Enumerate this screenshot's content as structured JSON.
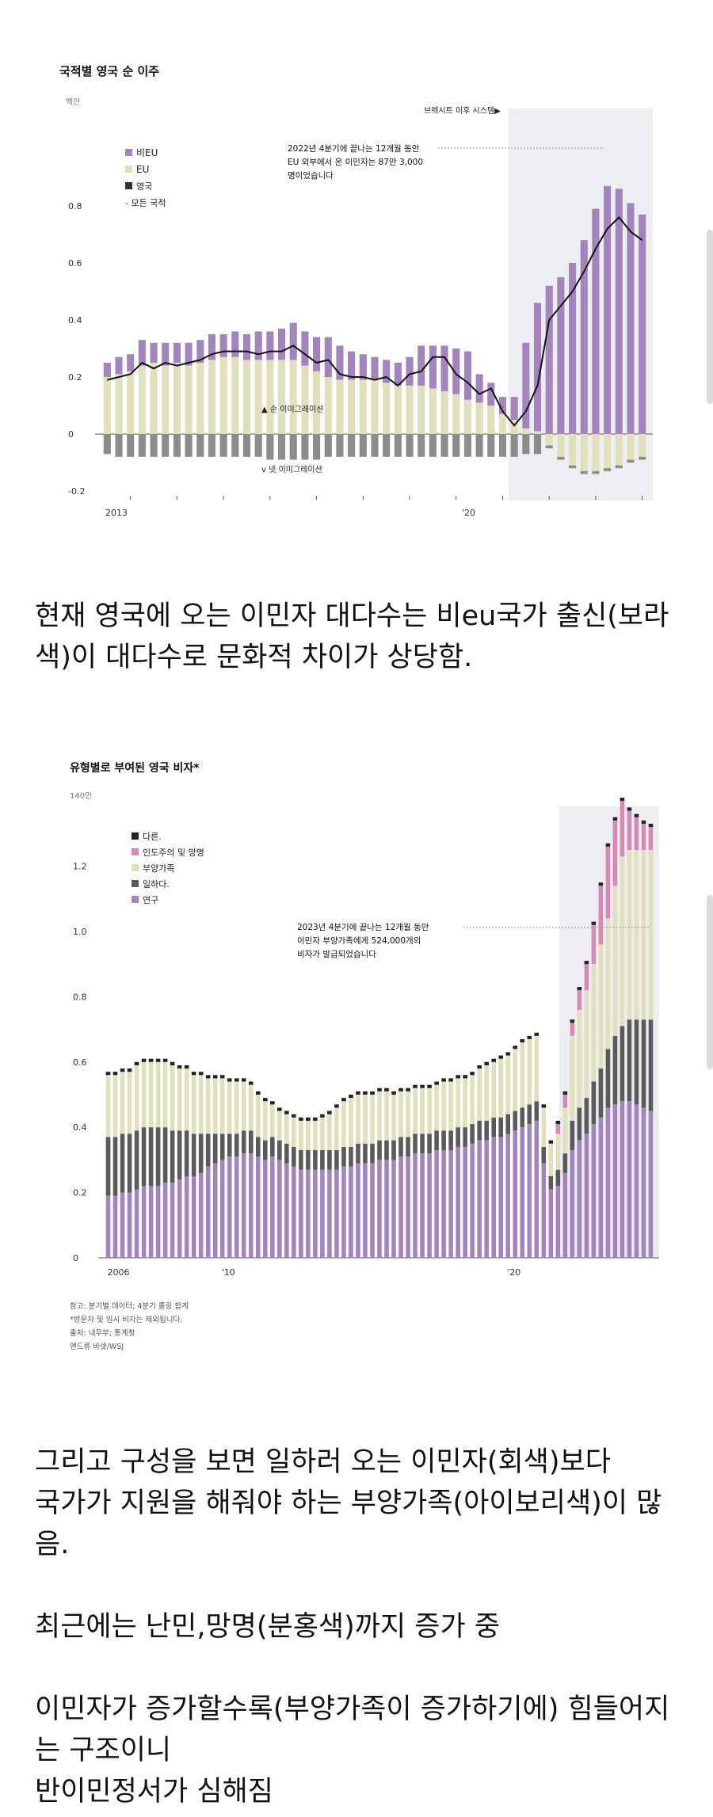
{
  "charts": {
    "c1": {
      "title": "국적별 영국 순 이주",
      "unit": "백만",
      "brexit_label": "브렉시트 이후 시스템▶",
      "legend": {
        "non_eu": "비EU",
        "eu": "EU",
        "uk": "영국",
        "all": "- 모든 국적"
      },
      "annotation": [
        "2022년 4분기에 끝나는 12개월 동안",
        "EU 외부에서 온 이민자는 87만 3,000",
        "명이었습니다"
      ],
      "net_immigration_label": "▲ 순 이미그레이션",
      "net_emigration_label": "v 넷 이미그레이션",
      "yticks": [
        "0.8",
        "0.6",
        "0.4",
        "0.2",
        "0",
        "-0.2"
      ],
      "xticks": [
        "2013",
        "'20"
      ]
    },
    "c2": {
      "title": "유형별로 부여된 영국 비자*",
      "unit": "140만",
      "legend": {
        "other": "다른.",
        "humanitarian": "인도주의 및 망명",
        "dependents": "부양가족",
        "work": "일하다.",
        "study": "연구"
      },
      "annotation": [
        "2023년 4분기에 끝나는 12개월 동안",
        "이민자 부양가족에게 524,000개의",
        "비자가 발급되었습니다"
      ],
      "yticks": [
        "1.2",
        "1.0",
        "0.8",
        "0.6",
        "0.4",
        "0.2",
        "0"
      ],
      "xticks": [
        "2006",
        "'10",
        "'20"
      ],
      "notes": [
        "참고: 분기별 데이터; 4분기 롤링 합계",
        "*방문자 및 임시 비자는 제외됩니다.",
        "출처: 내무부; 통계청",
        "앤드류 바넷/WSJ"
      ]
    }
  },
  "captions": {
    "c1": "현재 영국에 오는 이민자 대다수는 비eu국가 출신(보라\n색)이 대다수로 문화적 차이가 상당함.",
    "c2": "그리고 구성을 보면 일하러 오는 이민자(회색)보다\n국가가 지원을 해줘야 하는 부양가족(아이보리색)이 많음.\n\n최근에는 난민,망명(분홍색)까지 증가 중\n\n이민자가 증가할수록(부양가족이 증가하기에) 힘들어지\n는 구조이니\n반이민정서가 심해짐"
  },
  "colors": {
    "non_eu": "#a384bd",
    "eu": "#e2dfbd",
    "uk": "#8c8c8c",
    "line": "#111111",
    "study": "#a384bd",
    "work": "#5a5a5a",
    "dependents": "#e2dfbd",
    "humanitarian": "#d889b5",
    "other": "#222222",
    "brexit_shade": "#eceef1"
  },
  "chart_data": [
    {
      "type": "bar",
      "title": "국적별 영국 순 이주",
      "ylabel": "백만",
      "ylim": [
        -0.2,
        0.9
      ],
      "x_start": "2012 Q2",
      "x_step": "quarter",
      "xticks": [
        "2013",
        "'20"
      ],
      "stacked": true,
      "shaded_from_index": 35,
      "series": [
        {
          "name": "비EU",
          "values": [
            0.05,
            0.06,
            0.06,
            0.09,
            0.07,
            0.08,
            0.07,
            0.08,
            0.08,
            0.09,
            0.08,
            0.09,
            0.09,
            0.1,
            0.1,
            0.11,
            0.13,
            0.12,
            0.12,
            0.14,
            0.12,
            0.1,
            0.09,
            0.08,
            0.08,
            0.08,
            0.1,
            0.14,
            0.15,
            0.16,
            0.16,
            0.17,
            0.1,
            0.08,
            0.06,
            0.08,
            0.3,
            0.45,
            0.52,
            0.55,
            0.6,
            0.68,
            0.79,
            0.87,
            0.86,
            0.81,
            0.77
          ]
        },
        {
          "name": "EU",
          "values": [
            0.2,
            0.21,
            0.22,
            0.24,
            0.25,
            0.24,
            0.25,
            0.24,
            0.25,
            0.26,
            0.27,
            0.27,
            0.26,
            0.26,
            0.26,
            0.26,
            0.26,
            0.24,
            0.22,
            0.2,
            0.19,
            0.19,
            0.19,
            0.19,
            0.18,
            0.17,
            0.17,
            0.17,
            0.16,
            0.15,
            0.14,
            0.12,
            0.11,
            0.1,
            0.07,
            0.05,
            0.02,
            0.01,
            -0.04,
            -0.08,
            -0.11,
            -0.13,
            -0.13,
            -0.12,
            -0.11,
            -0.09,
            -0.08
          ]
        },
        {
          "name": "영국",
          "values": [
            -0.07,
            -0.08,
            -0.08,
            -0.08,
            -0.08,
            -0.08,
            -0.08,
            -0.08,
            -0.08,
            -0.08,
            -0.08,
            -0.08,
            -0.08,
            -0.08,
            -0.09,
            -0.09,
            -0.09,
            -0.09,
            -0.09,
            -0.08,
            -0.08,
            -0.08,
            -0.08,
            -0.08,
            -0.08,
            -0.08,
            -0.08,
            -0.08,
            -0.08,
            -0.08,
            -0.08,
            -0.08,
            -0.08,
            -0.08,
            -0.08,
            -0.08,
            -0.07,
            -0.07,
            -0.01,
            -0.01,
            -0.01,
            -0.01,
            -0.01,
            -0.01,
            -0.01,
            -0.01,
            -0.01
          ]
        },
        {
          "name": "모든 국적",
          "type": "line",
          "values": [
            0.19,
            0.2,
            0.21,
            0.25,
            0.23,
            0.25,
            0.24,
            0.25,
            0.26,
            0.28,
            0.29,
            0.29,
            0.29,
            0.28,
            0.29,
            0.29,
            0.31,
            0.28,
            0.25,
            0.26,
            0.21,
            0.2,
            0.2,
            0.19,
            0.2,
            0.17,
            0.21,
            0.22,
            0.27,
            0.27,
            0.21,
            0.18,
            0.14,
            0.16,
            0.08,
            0.03,
            0.08,
            0.17,
            0.4,
            0.45,
            0.5,
            0.57,
            0.65,
            0.72,
            0.76,
            0.71,
            0.68
          ]
        }
      ]
    },
    {
      "type": "bar",
      "title": "유형별로 부여된 영국 비자*",
      "ylabel": "140만",
      "ylim": [
        0,
        1.4
      ],
      "x_start": "2005 Q4",
      "x_step": "quarter",
      "xticks": [
        "2006",
        "'10",
        "'20"
      ],
      "stacked": true,
      "shaded_from_index": 64,
      "series": [
        {
          "name": "연구",
          "values": [
            0.19,
            0.19,
            0.2,
            0.2,
            0.21,
            0.22,
            0.22,
            0.22,
            0.23,
            0.23,
            0.24,
            0.25,
            0.25,
            0.26,
            0.28,
            0.29,
            0.3,
            0.31,
            0.31,
            0.32,
            0.32,
            0.31,
            0.3,
            0.31,
            0.3,
            0.29,
            0.28,
            0.27,
            0.27,
            0.27,
            0.27,
            0.27,
            0.27,
            0.28,
            0.28,
            0.29,
            0.29,
            0.29,
            0.3,
            0.3,
            0.3,
            0.31,
            0.31,
            0.32,
            0.32,
            0.32,
            0.33,
            0.33,
            0.33,
            0.34,
            0.34,
            0.35,
            0.36,
            0.36,
            0.37,
            0.37,
            0.38,
            0.39,
            0.4,
            0.41,
            0.42,
            0.29,
            0.21,
            0.22,
            0.26,
            0.33,
            0.36,
            0.38,
            0.41,
            0.43,
            0.46,
            0.47,
            0.48,
            0.48,
            0.47,
            0.46,
            0.45
          ]
        },
        {
          "name": "일하다.",
          "values": [
            0.18,
            0.18,
            0.18,
            0.18,
            0.18,
            0.18,
            0.18,
            0.18,
            0.17,
            0.16,
            0.15,
            0.14,
            0.13,
            0.12,
            0.1,
            0.09,
            0.08,
            0.07,
            0.07,
            0.07,
            0.07,
            0.06,
            0.06,
            0.06,
            0.06,
            0.06,
            0.06,
            0.06,
            0.06,
            0.06,
            0.06,
            0.06,
            0.06,
            0.06,
            0.06,
            0.06,
            0.06,
            0.06,
            0.06,
            0.06,
            0.06,
            0.06,
            0.06,
            0.06,
            0.06,
            0.06,
            0.06,
            0.06,
            0.06,
            0.06,
            0.06,
            0.06,
            0.06,
            0.06,
            0.06,
            0.06,
            0.06,
            0.06,
            0.06,
            0.06,
            0.06,
            0.05,
            0.04,
            0.05,
            0.06,
            0.09,
            0.1,
            0.11,
            0.13,
            0.15,
            0.18,
            0.21,
            0.23,
            0.25,
            0.26,
            0.27,
            0.28
          ]
        },
        {
          "name": "부양가족",
          "values": [
            0.19,
            0.19,
            0.19,
            0.19,
            0.2,
            0.2,
            0.2,
            0.2,
            0.2,
            0.2,
            0.19,
            0.19,
            0.18,
            0.18,
            0.17,
            0.17,
            0.17,
            0.16,
            0.16,
            0.15,
            0.14,
            0.13,
            0.12,
            0.1,
            0.09,
            0.09,
            0.09,
            0.09,
            0.09,
            0.09,
            0.1,
            0.11,
            0.13,
            0.14,
            0.15,
            0.15,
            0.15,
            0.15,
            0.15,
            0.15,
            0.14,
            0.14,
            0.14,
            0.14,
            0.14,
            0.14,
            0.14,
            0.15,
            0.15,
            0.15,
            0.15,
            0.15,
            0.16,
            0.17,
            0.17,
            0.18,
            0.18,
            0.19,
            0.2,
            0.2,
            0.2,
            0.12,
            0.1,
            0.11,
            0.14,
            0.26,
            0.3,
            0.33,
            0.36,
            0.38,
            0.4,
            0.46,
            0.52,
            0.52,
            0.52,
            0.52,
            0.52
          ]
        },
        {
          "name": "인도주의 및 망명",
          "values": [
            0,
            0,
            0,
            0,
            0,
            0,
            0,
            0,
            0,
            0,
            0,
            0,
            0,
            0,
            0,
            0,
            0,
            0,
            0,
            0,
            0,
            0,
            0,
            0,
            0,
            0,
            0,
            0,
            0,
            0,
            0,
            0,
            0,
            0,
            0,
            0,
            0,
            0,
            0,
            0,
            0,
            0,
            0,
            0,
            0,
            0,
            0,
            0,
            0,
            0,
            0,
            0,
            0,
            0,
            0,
            0,
            0,
            0,
            0,
            0,
            0,
            0,
            0,
            0.03,
            0.04,
            0.04,
            0.06,
            0.08,
            0.12,
            0.18,
            0.22,
            0.2,
            0.17,
            0.12,
            0.1,
            0.08,
            0.07
          ]
        },
        {
          "name": "다른.",
          "values": [
            0.01,
            0.01,
            0.01,
            0.01,
            0.01,
            0.01,
            0.01,
            0.01,
            0.01,
            0.01,
            0.01,
            0.01,
            0.01,
            0.01,
            0.01,
            0.01,
            0.01,
            0.01,
            0.01,
            0.01,
            0.01,
            0.01,
            0.01,
            0.01,
            0.01,
            0.01,
            0.01,
            0.01,
            0.01,
            0.01,
            0.01,
            0.01,
            0.01,
            0.01,
            0.01,
            0.01,
            0.01,
            0.01,
            0.01,
            0.01,
            0.01,
            0.01,
            0.01,
            0.01,
            0.01,
            0.01,
            0.01,
            0.01,
            0.01,
            0.01,
            0.01,
            0.01,
            0.01,
            0.01,
            0.01,
            0.01,
            0.01,
            0.01,
            0.01,
            0.01,
            0.01,
            0.01,
            0.01,
            0.01,
            0.01,
            0.01,
            0.01,
            0.01,
            0.01,
            0.01,
            0.01,
            0.01,
            0.01,
            0.01,
            0.01,
            0.01,
            0.01
          ]
        }
      ]
    }
  ]
}
